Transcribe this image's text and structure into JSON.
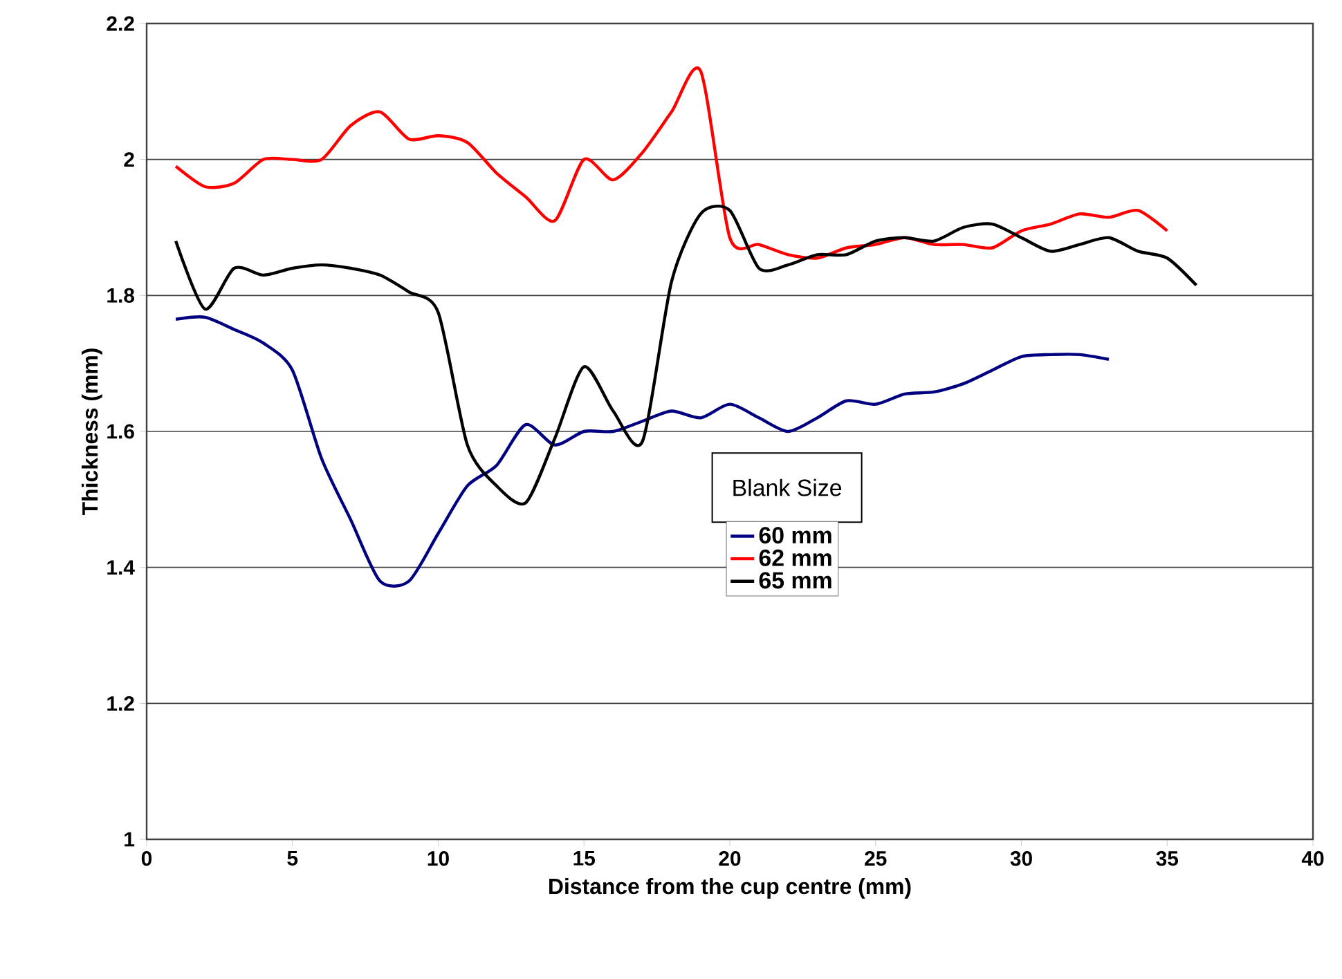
{
  "chart_data": {
    "type": "line",
    "xlabel": "Distance from the cup centre (mm)",
    "ylabel": "Thickness (mm)",
    "legend_title": "Blank  Size",
    "xlim": [
      0,
      40
    ],
    "xticks": [
      0,
      5,
      10,
      15,
      20,
      25,
      30,
      35,
      40
    ],
    "ylim": [
      1,
      2.2
    ],
    "yticks": [
      1,
      1.2,
      1.4,
      1.6,
      1.8,
      2,
      2.2
    ],
    "grid": "y",
    "legend": "bottom",
    "marker": "none",
    "line_style": "solid",
    "series": [
      {
        "name": "60 mm",
        "color": "#000080",
        "x": [
          1,
          2,
          3,
          4,
          5,
          6,
          7,
          8,
          9,
          10,
          11,
          12,
          13,
          14,
          15,
          16,
          17,
          18,
          19,
          20,
          21,
          22,
          23,
          24,
          25,
          26,
          27,
          28,
          29,
          30,
          31,
          32,
          33
        ],
        "values": [
          1.765,
          1.768,
          1.75,
          1.73,
          1.69,
          1.56,
          1.47,
          1.38,
          1.38,
          1.45,
          1.52,
          1.55,
          1.61,
          1.58,
          1.6,
          1.6,
          1.615,
          1.63,
          1.62,
          1.64,
          1.62,
          1.6,
          1.62,
          1.645,
          1.64,
          1.655,
          1.658,
          1.67,
          1.69,
          1.71,
          1.713,
          1.713,
          1.706
        ]
      },
      {
        "name": "62 mm",
        "color": "#ff0000",
        "x": [
          1,
          2,
          3,
          4,
          5,
          6,
          7,
          8,
          9,
          10,
          11,
          12,
          13,
          14,
          15,
          16,
          17,
          18,
          19,
          20,
          21,
          22,
          23,
          24,
          25,
          26,
          27,
          28,
          29,
          30,
          31,
          32,
          33,
          34,
          35
        ],
        "values": [
          1.99,
          1.96,
          1.965,
          2.0,
          2.0,
          2.0,
          2.05,
          2.07,
          2.03,
          2.035,
          2.025,
          1.98,
          1.945,
          1.91,
          2.0,
          1.97,
          2.01,
          2.07,
          2.13,
          1.885,
          1.875,
          1.86,
          1.855,
          1.87,
          1.875,
          1.885,
          1.875,
          1.875,
          1.87,
          1.895,
          1.905,
          1.92,
          1.915,
          1.925,
          1.895
        ]
      },
      {
        "name": "65 mm",
        "color": "#000000",
        "x": [
          1,
          2,
          3,
          4,
          5,
          6,
          7,
          8,
          9,
          10,
          11,
          12,
          13,
          14,
          15,
          16,
          17,
          18,
          19,
          20,
          21,
          22,
          23,
          24,
          25,
          26,
          27,
          28,
          29,
          30,
          31,
          32,
          33,
          34,
          35,
          36
        ],
        "values": [
          1.88,
          1.78,
          1.84,
          1.83,
          1.84,
          1.845,
          1.84,
          1.83,
          1.805,
          1.775,
          1.58,
          1.52,
          1.495,
          1.59,
          1.695,
          1.63,
          1.585,
          1.82,
          1.92,
          1.925,
          1.84,
          1.845,
          1.86,
          1.86,
          1.88,
          1.885,
          1.88,
          1.9,
          1.905,
          1.885,
          1.865,
          1.875,
          1.885,
          1.865,
          1.855,
          1.815
        ]
      }
    ]
  }
}
